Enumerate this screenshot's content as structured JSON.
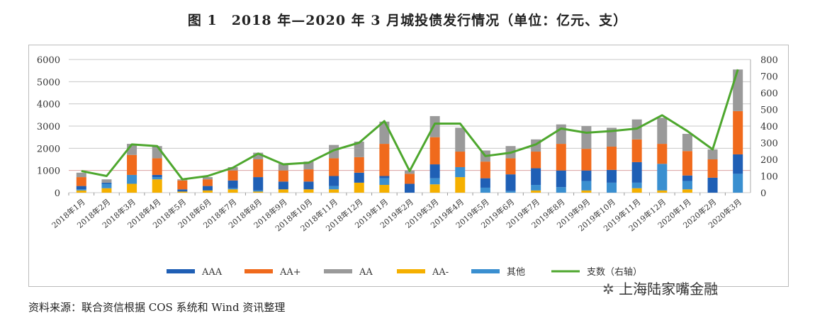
{
  "title": "图 1　2018 年—2020 年 3 月城投债发行情况（单位：亿元、支）",
  "source": "资料来源：联合资信根据 COS 系统和 Wind 资讯整理",
  "watermark": "上海陆家嘴金融",
  "chart_data": {
    "type": "bar",
    "stacked": true,
    "categories": [
      "2018年1月",
      "2018年2月",
      "2018年3月",
      "2018年4月",
      "2018年5月",
      "2018年6月",
      "2018年7月",
      "2018年8月",
      "2018年9月",
      "2018年10月",
      "2018年11月",
      "2018年12月",
      "2019年1月",
      "2019年2月",
      "2019年3月",
      "2019年4月",
      "2019年5月",
      "2019年6月",
      "2019年7月",
      "2019年8月",
      "2019年9月",
      "2019年10月",
      "2019年11月",
      "2019年12月",
      "2020年1月",
      "2020年2月",
      "2020年3月"
    ],
    "ylim": [
      0,
      6000
    ],
    "y2lim": [
      0,
      800
    ],
    "yticks": [
      0,
      1000,
      2000,
      3000,
      4000,
      5000,
      6000
    ],
    "y2ticks": [
      0,
      100,
      200,
      300,
      400,
      500,
      600,
      700,
      800
    ],
    "grid": true,
    "legend": "bottom",
    "series": [
      {
        "name": "AA-",
        "color": "#f5b000",
        "values": [
          100,
          200,
          400,
          600,
          50,
          100,
          150,
          50,
          150,
          150,
          150,
          450,
          350,
          0,
          375,
          700,
          0,
          0,
          100,
          0,
          100,
          0,
          200,
          100,
          150,
          0,
          0
        ]
      },
      {
        "name": "其他",
        "color": "#3a8fd0",
        "values": [
          50,
          200,
          400,
          100,
          0,
          0,
          50,
          50,
          0,
          0,
          150,
          0,
          300,
          0,
          275,
          450,
          225,
          75,
          250,
          250,
          425,
          450,
          250,
          1200,
          375,
          0,
          850
        ]
      },
      {
        "name": "AAA",
        "color": "#1f5fb5",
        "values": [
          150,
          50,
          0,
          100,
          100,
          200,
          350,
          600,
          350,
          350,
          450,
          450,
          100,
          400,
          625,
          0,
          425,
          750,
          750,
          750,
          475,
          575,
          925,
          0,
          250,
          675,
          875
        ]
      },
      {
        "name": "AA+",
        "color": "#f06a1c",
        "values": [
          400,
          0,
          900,
          750,
          400,
          300,
          450,
          800,
          500,
          550,
          800,
          700,
          1450,
          450,
          1225,
          700,
          750,
          725,
          750,
          1200,
          975,
          1050,
          1025,
          900,
          1100,
          825,
          1950
        ]
      },
      {
        "name": "AA",
        "color": "#9a9a9a",
        "values": [
          200,
          150,
          500,
          550,
          50,
          100,
          150,
          300,
          300,
          350,
          600,
          700,
          1000,
          150,
          950,
          1075,
          500,
          550,
          550,
          875,
          1025,
          850,
          900,
          1175,
          775,
          450,
          1875
        ]
      }
    ],
    "line": {
      "name": "支数（右轴）",
      "color": "#4ea72e",
      "axis": "right",
      "values": [
        130,
        100,
        290,
        280,
        80,
        100,
        150,
        235,
        170,
        180,
        255,
        300,
        430,
        130,
        415,
        415,
        220,
        240,
        290,
        385,
        360,
        370,
        385,
        465,
        370,
        260,
        740
      ]
    }
  }
}
